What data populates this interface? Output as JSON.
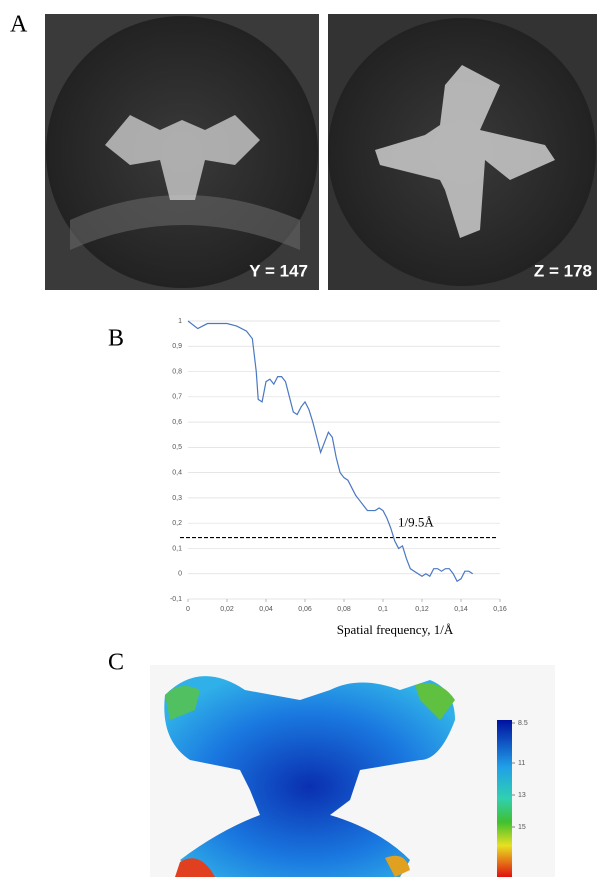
{
  "panel_labels": [
    "A",
    "B",
    "C"
  ],
  "panel_a": {
    "images": [
      {
        "label": "Y = 147"
      },
      {
        "label": "Z = 178"
      }
    ]
  },
  "chart_data": {
    "type": "line",
    "x_label": "Spatial frequency, 1/Å",
    "annotation": "1/9.5Å",
    "threshold": 0.143,
    "x": [
      0,
      0.005,
      0.01,
      0.015,
      0.02,
      0.025,
      0.03,
      0.033,
      0.035,
      0.036,
      0.038,
      0.04,
      0.042,
      0.044,
      0.046,
      0.048,
      0.05,
      0.052,
      0.054,
      0.056,
      0.058,
      0.06,
      0.062,
      0.064,
      0.066,
      0.068,
      0.07,
      0.072,
      0.074,
      0.076,
      0.078,
      0.08,
      0.082,
      0.084,
      0.086,
      0.088,
      0.09,
      0.092,
      0.094,
      0.096,
      0.098,
      0.1,
      0.102,
      0.104,
      0.106,
      0.108,
      0.11,
      0.112,
      0.114,
      0.116,
      0.118,
      0.12,
      0.122,
      0.124,
      0.126,
      0.128,
      0.13,
      0.132,
      0.134,
      0.136,
      0.138,
      0.14,
      0.142,
      0.144,
      0.146
    ],
    "series": [
      {
        "color": "#4a78c2",
        "values": [
          1.0,
          0.97,
          0.99,
          0.99,
          0.99,
          0.98,
          0.96,
          0.93,
          0.8,
          0.69,
          0.68,
          0.76,
          0.77,
          0.75,
          0.78,
          0.78,
          0.76,
          0.7,
          0.64,
          0.63,
          0.66,
          0.68,
          0.65,
          0.6,
          0.54,
          0.48,
          0.52,
          0.56,
          0.54,
          0.46,
          0.4,
          0.38,
          0.37,
          0.34,
          0.31,
          0.29,
          0.27,
          0.25,
          0.25,
          0.25,
          0.26,
          0.25,
          0.22,
          0.18,
          0.13,
          0.1,
          0.11,
          0.06,
          0.02,
          0.01,
          0.0,
          -0.01,
          0.0,
          -0.01,
          0.02,
          0.02,
          0.01,
          0.02,
          0.02,
          0.0,
          -0.03,
          -0.02,
          0.01,
          0.01,
          0.0
        ]
      }
    ],
    "xlim": [
      0,
      0.16
    ],
    "ylim": [
      -0.1,
      1
    ],
    "xticks": [
      0,
      {
        "value": 0.02,
        "label": "0,02"
      },
      {
        "value": 0.04,
        "label": "0,04"
      },
      {
        "value": 0.06,
        "label": "0,06"
      },
      {
        "value": 0.08,
        "label": "0,08"
      },
      {
        "value": 0.1,
        "label": "0,1"
      },
      {
        "value": 0.12,
        "label": "0,12"
      },
      {
        "value": 0.14,
        "label": "0,14"
      },
      {
        "value": 0.16,
        "label": "0,16"
      }
    ],
    "yticks": [
      {
        "value": -0.1,
        "label": "-0,1"
      },
      0,
      {
        "value": 0.1,
        "label": "0,1"
      },
      {
        "value": 0.2,
        "label": "0,2"
      },
      {
        "value": 0.3,
        "label": "0,3"
      },
      {
        "value": 0.4,
        "label": "0,4"
      },
      {
        "value": 0.5,
        "label": "0,5"
      },
      {
        "value": 0.6,
        "label": "0,6"
      },
      {
        "value": 0.7,
        "label": "0,7"
      },
      {
        "value": 0.8,
        "label": "0,8"
      },
      {
        "value": 0.9,
        "label": "0,9"
      },
      1
    ],
    "grid": true
  },
  "panel_c": {
    "colorbar_ticks": [
      8.5,
      11,
      13,
      15
    ]
  }
}
